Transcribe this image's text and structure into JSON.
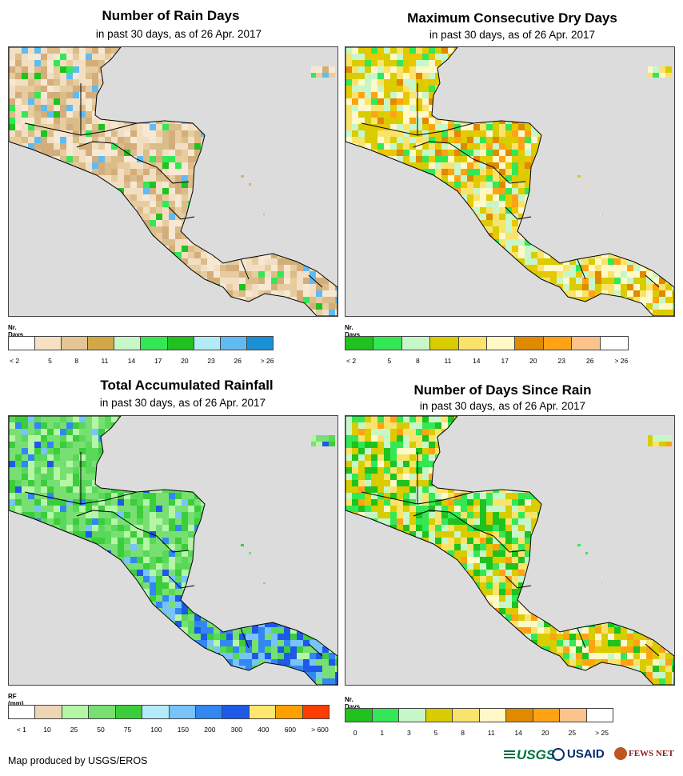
{
  "panels": [
    {
      "title": "Number of Rain Days",
      "subtitle": "in past 30 days, as of 26 Apr. 2017",
      "legend_unit": "Nr. Days",
      "legend_colors": [
        "#ffffff",
        "#f7e0c3",
        "#e3c596",
        "#d2a847",
        "#c7f7c8",
        "#33e854",
        "#1fc21f",
        "#b2ebf5",
        "#60bbf2",
        "#1a90d6"
      ],
      "legend_ticks": [
        "< 2",
        "5",
        "8",
        "11",
        "14",
        "17",
        "20",
        "23",
        "26",
        "> 26"
      ],
      "land_palette": [
        "#f2dfc3",
        "#e6cc9f",
        "#dbbd8a",
        "#f7e8d3",
        "#d4ae7a"
      ],
      "accent_palette": [
        "#33e854",
        "#1fc21f",
        "#60bbf2"
      ]
    },
    {
      "title": "Maximum Consecutive Dry Days",
      "subtitle": "in past 30 days, as of 26 Apr. 2017",
      "legend_unit": "Nr. Days",
      "legend_colors": [
        "#1fc21f",
        "#33e854",
        "#c7f7c8",
        "#d9cc00",
        "#fae36b",
        "#fff8c7",
        "#e08a00",
        "#ffa314",
        "#fcc38a",
        "#ffffff"
      ],
      "legend_ticks": [
        "< 2",
        "5",
        "8",
        "11",
        "14",
        "17",
        "20",
        "23",
        "26",
        "> 26"
      ],
      "land_palette": [
        "#d9cc00",
        "#fae36b",
        "#c7f7c8",
        "#e8c800",
        "#fff8c7"
      ],
      "accent_palette": [
        "#ffa314",
        "#e08a00",
        "#33e854"
      ]
    },
    {
      "title": "Total Accumulated Rainfall",
      "subtitle": "in past 30 days, as of 26 Apr. 2017",
      "legend_unit": "RF (mm)",
      "legend_colors": [
        "#ffffff",
        "#eed5b6",
        "#b4f6a6",
        "#78e072",
        "#3ccd3c",
        "#b4ecfa",
        "#78c3fa",
        "#3287f0",
        "#1e5ae6",
        "#ffe66e",
        "#ffa000",
        "#ff3c00"
      ],
      "legend_ticks": [
        "< 1",
        "10",
        "25",
        "50",
        "75",
        "100",
        "150",
        "200",
        "300",
        "400",
        "600",
        "> 600"
      ],
      "land_palette": [
        "#78e072",
        "#3ccd3c",
        "#b4f6a6",
        "#78e072",
        "#5ad85a"
      ],
      "accent_palette": [
        "#78c3fa",
        "#3287f0",
        "#1e5ae6"
      ]
    },
    {
      "title": "Number of Days Since Rain",
      "subtitle": "in past 30 days, as of 26 Apr. 2017",
      "legend_unit": "Nr. Days",
      "legend_colors": [
        "#1fc21f",
        "#33e854",
        "#c7f7c8",
        "#d9cc00",
        "#fae36b",
        "#fff8c7",
        "#e08a00",
        "#ffa314",
        "#fcc38a",
        "#ffffff"
      ],
      "legend_ticks": [
        "0",
        "1",
        "3",
        "5",
        "8",
        "11",
        "14",
        "20",
        "25",
        "> 25"
      ],
      "land_palette": [
        "#d9cc00",
        "#33e854",
        "#1fc21f",
        "#c7f7c8",
        "#fae36b"
      ],
      "accent_palette": [
        "#ffa314",
        "#fff8c7",
        "#d9cc00"
      ]
    }
  ],
  "footer": {
    "credit": "Map produced by USGS/EROS"
  },
  "logos": {
    "usgs": "USGS",
    "usaid": "USAID",
    "fewsnet": "FEWS NET"
  },
  "colors": {
    "ocean": "#dcdcdc",
    "border": "#000000"
  }
}
